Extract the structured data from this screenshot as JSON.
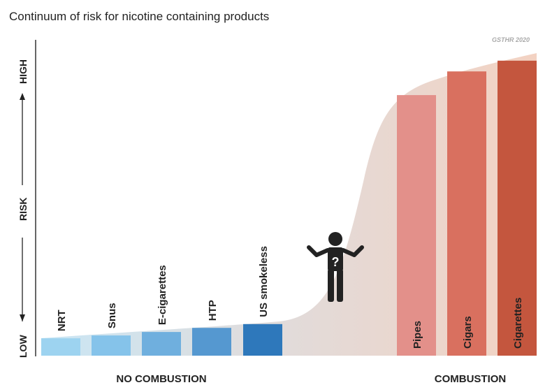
{
  "chart_data": {
    "type": "bar",
    "title": "Continuum of risk for nicotine containing products",
    "source": "GSTHR 2020",
    "ylabel": {
      "low": "LOW",
      "mid": "RISK",
      "high": "HIGH"
    },
    "ylim": [
      0,
      100
    ],
    "grid": false,
    "categories": [
      "NRT",
      "Snus",
      "E-cigarettes",
      "HTP",
      "US smokeless",
      "Pipes",
      "Cigars",
      "Cigarettes"
    ],
    "values": [
      5.5,
      6.4,
      7.5,
      8.8,
      10,
      82.5,
      90,
      93.4
    ],
    "colors": [
      "#9dd3f0",
      "#85c3ea",
      "#6fafde",
      "#5598d0",
      "#2e78bb",
      "#e3908a",
      "#d9705f",
      "#c4563e"
    ],
    "groups": [
      {
        "label": "NO COMBUSTION",
        "categories": [
          "NRT",
          "Snus",
          "E-cigarettes",
          "HTP",
          "US smokeless"
        ]
      },
      {
        "label": "COMBUSTION",
        "categories": [
          "Pipes",
          "Cigars",
          "Cigarettes"
        ]
      }
    ],
    "icon": "confused-person-question-mark-icon"
  }
}
